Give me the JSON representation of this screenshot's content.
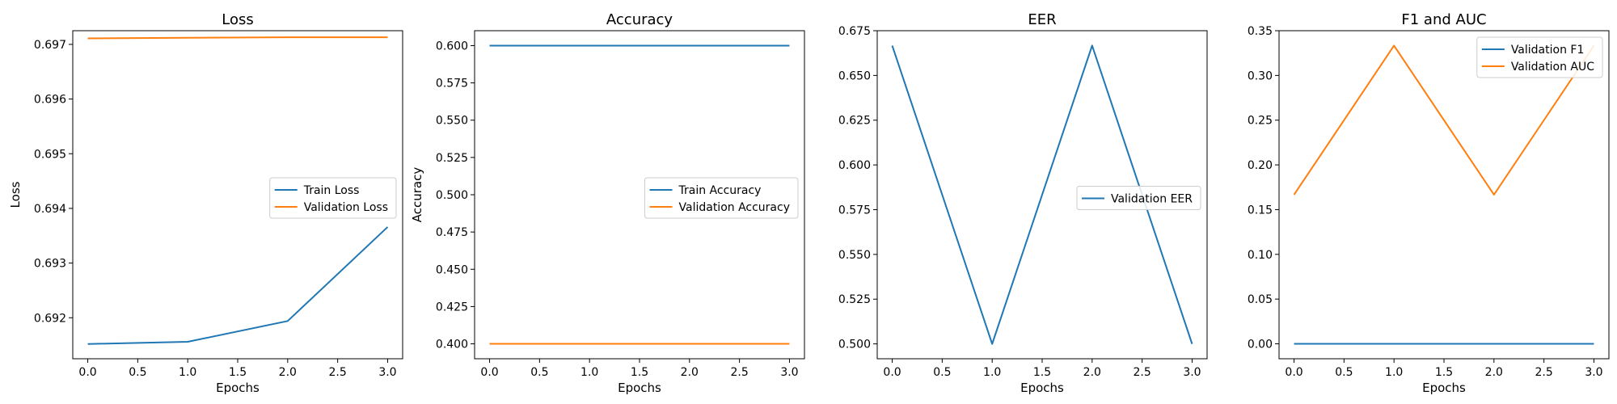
{
  "chart_data": [
    {
      "type": "line",
      "title": "Loss",
      "xlabel": "Epochs",
      "ylabel": "Loss",
      "x": [
        0,
        1,
        2,
        3
      ],
      "xlim": [
        -0.15,
        3.15
      ],
      "ylim": [
        0.69125,
        0.69725
      ],
      "xticks": [
        "0.0",
        "0.5",
        "1.0",
        "1.5",
        "2.0",
        "2.5",
        "3.0"
      ],
      "yticks": [
        "0.692",
        "0.693",
        "0.694",
        "0.695",
        "0.696",
        "0.697"
      ],
      "legend_position": "center-right",
      "series": [
        {
          "name": "Train Loss",
          "color": "#1f77b4",
          "values": [
            0.69152,
            0.69156,
            0.69194,
            0.69366
          ]
        },
        {
          "name": "Validation Loss",
          "color": "#ff7f0e",
          "values": [
            0.69711,
            0.69712,
            0.69713,
            0.69713
          ]
        }
      ]
    },
    {
      "type": "line",
      "title": "Accuracy",
      "xlabel": "Epochs",
      "ylabel": "Accuracy",
      "x": [
        0,
        1,
        2,
        3
      ],
      "xlim": [
        -0.15,
        3.15
      ],
      "ylim": [
        0.39,
        0.61
      ],
      "xticks": [
        "0.0",
        "0.5",
        "1.0",
        "1.5",
        "2.0",
        "2.5",
        "3.0"
      ],
      "yticks": [
        "0.400",
        "0.425",
        "0.450",
        "0.475",
        "0.500",
        "0.525",
        "0.550",
        "0.575",
        "0.600"
      ],
      "legend_position": "center-right",
      "series": [
        {
          "name": "Train Accuracy",
          "color": "#1f77b4",
          "values": [
            0.6,
            0.6,
            0.6,
            0.6
          ]
        },
        {
          "name": "Validation Accuracy",
          "color": "#ff7f0e",
          "values": [
            0.4,
            0.4,
            0.4,
            0.4
          ]
        }
      ]
    },
    {
      "type": "line",
      "title": "EER",
      "xlabel": "Epochs",
      "ylabel": "",
      "x": [
        0,
        1,
        2,
        3
      ],
      "xlim": [
        -0.15,
        3.15
      ],
      "ylim": [
        0.4917,
        0.675
      ],
      "xticks": [
        "0.0",
        "0.5",
        "1.0",
        "1.5",
        "2.0",
        "2.5",
        "3.0"
      ],
      "yticks": [
        "0.500",
        "0.525",
        "0.550",
        "0.575",
        "0.600",
        "0.625",
        "0.650",
        "0.675"
      ],
      "legend_position": "center-right",
      "series": [
        {
          "name": "Validation EER",
          "color": "#1f77b4",
          "values": [
            0.6667,
            0.5,
            0.6667,
            0.5
          ]
        }
      ]
    },
    {
      "type": "line",
      "title": "F1 and AUC",
      "xlabel": "Epochs",
      "ylabel": "",
      "x": [
        0,
        1,
        2,
        3
      ],
      "xlim": [
        -0.15,
        3.15
      ],
      "ylim": [
        -0.0167,
        0.35
      ],
      "xticks": [
        "0.0",
        "0.5",
        "1.0",
        "1.5",
        "2.0",
        "2.5",
        "3.0"
      ],
      "yticks": [
        "0.00",
        "0.05",
        "0.10",
        "0.15",
        "0.20",
        "0.25",
        "0.30",
        "0.35"
      ],
      "legend_position": "upper-right",
      "series": [
        {
          "name": "Validation F1",
          "color": "#1f77b4",
          "values": [
            0,
            0,
            0,
            0
          ]
        },
        {
          "name": "Validation AUC",
          "color": "#ff7f0e",
          "values": [
            0.1667,
            0.3333,
            0.1667,
            0.3333
          ]
        }
      ]
    }
  ]
}
